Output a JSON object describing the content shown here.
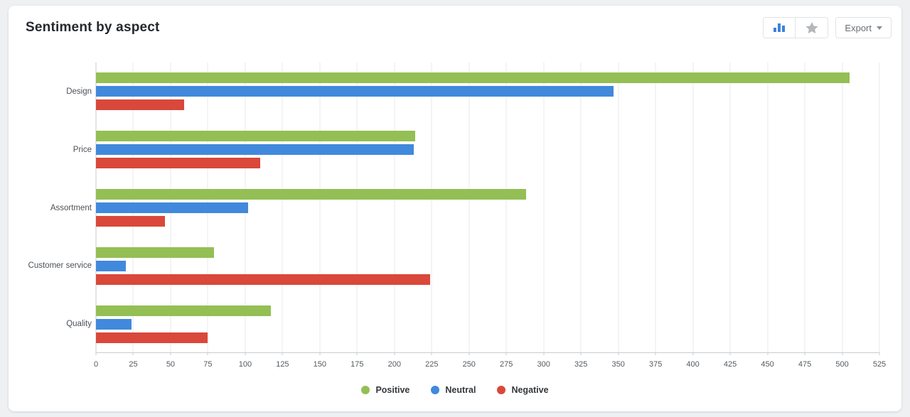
{
  "header": {
    "title": "Sentiment by aspect",
    "export_label": "Export"
  },
  "toolbar_icons": {
    "chart_type_active": "bar-chart-icon",
    "chart_type_inactive": "star-icon",
    "active_icon_color": "#3d82dc",
    "inactive_icon_color": "#b4b7ba"
  },
  "chart_data": {
    "type": "bar",
    "orientation": "horizontal",
    "title": "Sentiment by aspect",
    "categories": [
      "Design",
      "Price",
      "Assortment",
      "Customer service",
      "Quality"
    ],
    "series": [
      {
        "name": "Positive",
        "color": "#94bf54",
        "values": [
          505,
          214,
          288,
          79,
          117
        ]
      },
      {
        "name": "Neutral",
        "color": "#4189dc",
        "values": [
          347,
          213,
          102,
          20,
          24
        ]
      },
      {
        "name": "Negative",
        "color": "#d9483a",
        "values": [
          59,
          110,
          46,
          224,
          75
        ]
      }
    ],
    "xlim": [
      0,
      525
    ],
    "x_tick_step": 25,
    "x_ticks": [
      0,
      25,
      50,
      75,
      100,
      125,
      150,
      175,
      200,
      225,
      250,
      275,
      300,
      325,
      350,
      375,
      400,
      425,
      450,
      475,
      500,
      525
    ],
    "grid": true,
    "legend_position": "bottom"
  }
}
